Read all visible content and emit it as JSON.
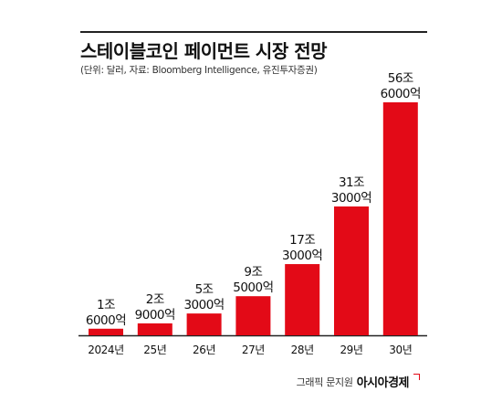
{
  "header": {
    "title": "스테이블코인 페이먼트 시장 전망",
    "subtitle": "(단위: 달러, 자료: Bloomberg Intelligence, 유진투자증권)"
  },
  "footer": {
    "credit": "그래픽 문지원",
    "logo": "아시아경제"
  },
  "colors": {
    "bar": "#e30a17",
    "baseline": "#222222"
  },
  "chart_data": {
    "type": "bar",
    "title": "스테이블코인 페이먼트 시장 전망",
    "xlabel": "",
    "ylabel": "",
    "unit": "달러",
    "categories": [
      "2024년",
      "25년",
      "26년",
      "27년",
      "28년",
      "29년",
      "30년"
    ],
    "values": [
      1.6,
      2.9,
      5.3,
      9.5,
      17.3,
      31.3,
      56.6
    ],
    "value_labels": [
      [
        "1조",
        "6000억"
      ],
      [
        "2조",
        "9000억"
      ],
      [
        "5조",
        "3000억"
      ],
      [
        "9조",
        "5000억"
      ],
      [
        "17조",
        "3000억"
      ],
      [
        "31조",
        "3000억"
      ],
      [
        "56조",
        "6000억"
      ]
    ],
    "ylim": [
      0,
      56.6
    ],
    "grid": false,
    "legend": "none"
  }
}
